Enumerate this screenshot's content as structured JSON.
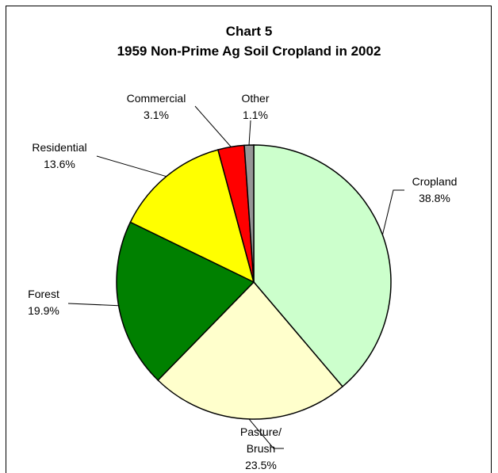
{
  "chart_data": {
    "type": "pie",
    "title": "Chart 5",
    "subtitle": "1959 Non-Prime Ag Soil Cropland in 2002",
    "categories": [
      "Cropland",
      "Pasture/\nBrush",
      "Forest",
      "Residential",
      "Commercial",
      "Other"
    ],
    "values": [
      38.8,
      23.5,
      19.9,
      13.6,
      3.1,
      1.1
    ],
    "value_labels": [
      "38.8%",
      "23.5%",
      "19.9%",
      "13.6%",
      "3.1%",
      "1.1%"
    ],
    "colors": [
      "#ccffcc",
      "#ffffcc",
      "#008000",
      "#ffff00",
      "#ff0000",
      "#969696"
    ]
  }
}
